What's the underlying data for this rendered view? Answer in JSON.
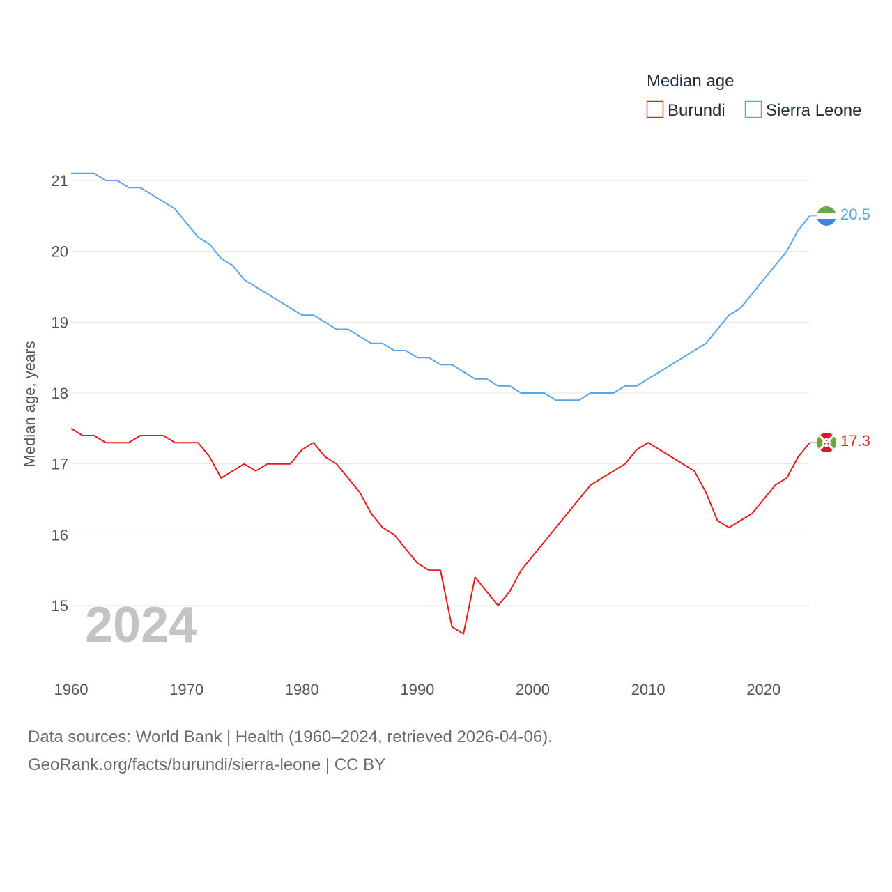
{
  "chart_data": {
    "type": "line",
    "legend_title": "Median age",
    "ylabel": "Median age, years",
    "xlabel": "",
    "xlim": [
      1960,
      2024
    ],
    "ylim": [
      14.1,
      21.4
    ],
    "x_ticks": [
      1960,
      1970,
      1980,
      1990,
      2000,
      2010,
      2020
    ],
    "y_ticks": [
      15,
      16,
      17,
      18,
      19,
      20,
      21
    ],
    "year_stamp": "2024",
    "grid": true,
    "legend_position": "top-right",
    "x": [
      1960,
      1961,
      1962,
      1963,
      1964,
      1965,
      1966,
      1967,
      1968,
      1969,
      1970,
      1971,
      1972,
      1973,
      1974,
      1975,
      1976,
      1977,
      1978,
      1979,
      1980,
      1981,
      1982,
      1983,
      1984,
      1985,
      1986,
      1987,
      1988,
      1989,
      1990,
      1991,
      1992,
      1993,
      1994,
      1995,
      1996,
      1997,
      1998,
      1999,
      2000,
      2001,
      2002,
      2003,
      2004,
      2005,
      2006,
      2007,
      2008,
      2009,
      2010,
      2011,
      2012,
      2013,
      2014,
      2015,
      2016,
      2017,
      2018,
      2019,
      2020,
      2021,
      2022,
      2023,
      2024
    ],
    "series": [
      {
        "name": "Burundi",
        "color": "#e31b1b",
        "end_label": "17.3",
        "values": [
          17.5,
          17.4,
          17.4,
          17.3,
          17.3,
          17.3,
          17.4,
          17.4,
          17.4,
          17.3,
          17.3,
          17.3,
          17.1,
          16.8,
          16.9,
          17.0,
          16.9,
          17.0,
          17.0,
          17.0,
          17.2,
          17.3,
          17.1,
          17.0,
          16.8,
          16.6,
          16.3,
          16.1,
          16.0,
          15.8,
          15.6,
          15.5,
          15.5,
          14.7,
          14.6,
          15.4,
          15.2,
          15.0,
          15.2,
          15.5,
          15.7,
          15.9,
          16.1,
          16.3,
          16.5,
          16.7,
          16.8,
          16.9,
          17.0,
          17.2,
          17.3,
          17.2,
          17.1,
          17.0,
          16.9,
          16.6,
          16.2,
          16.1,
          16.2,
          16.3,
          16.5,
          16.7,
          16.8,
          17.1,
          17.3
        ]
      },
      {
        "name": "Sierra Leone",
        "color": "#5ba4e6",
        "end_label": "20.5",
        "values": [
          21.1,
          21.1,
          21.1,
          21.0,
          21.0,
          20.9,
          20.9,
          20.8,
          20.7,
          20.6,
          20.4,
          20.2,
          20.1,
          19.9,
          19.8,
          19.6,
          19.5,
          19.4,
          19.3,
          19.2,
          19.1,
          19.1,
          19.0,
          18.9,
          18.9,
          18.8,
          18.7,
          18.7,
          18.6,
          18.6,
          18.5,
          18.5,
          18.4,
          18.4,
          18.3,
          18.2,
          18.2,
          18.1,
          18.1,
          18.0,
          18.0,
          18.0,
          17.9,
          17.9,
          17.9,
          18.0,
          18.0,
          18.0,
          18.1,
          18.1,
          18.2,
          18.3,
          18.4,
          18.5,
          18.6,
          18.7,
          18.9,
          19.1,
          19.2,
          19.4,
          19.6,
          19.8,
          20.0,
          20.3,
          20.5
        ]
      }
    ]
  },
  "source": {
    "line1": "Data sources: World Bank | Health (1960–2024, retrieved 2026-04-06).",
    "line2": "GeoRank.org/facts/burundi/sierra-leone | CC BY"
  }
}
